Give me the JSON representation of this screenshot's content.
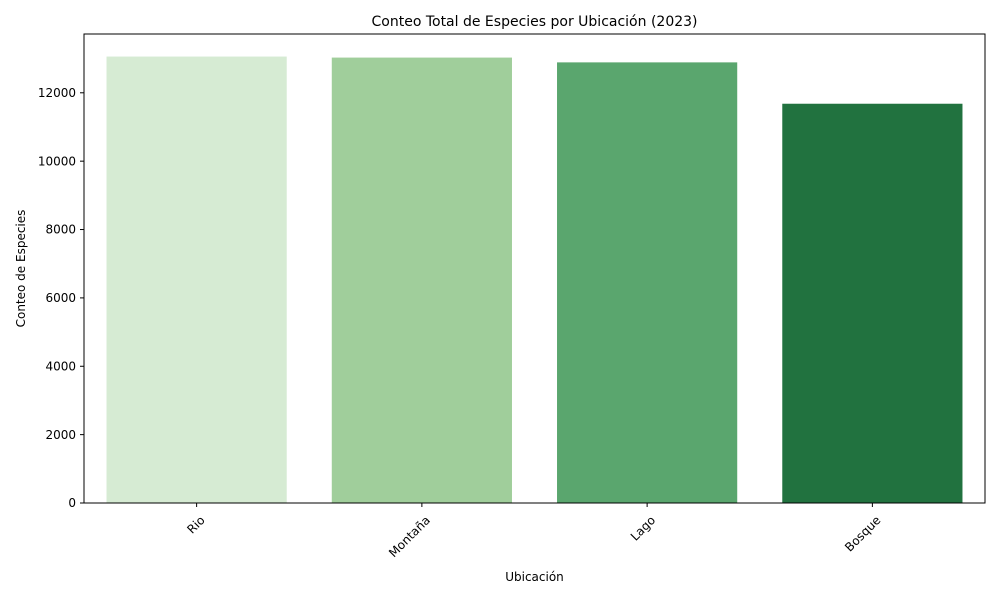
{
  "chart_data": {
    "type": "bar",
    "title": "Conteo Total de Especies por Ubicación (2023)",
    "xlabel": "Ubicación",
    "ylabel": "Conteo de Especies",
    "categories": [
      "Rio",
      "Montaña",
      "Lago",
      "Bosque"
    ],
    "values": [
      13060,
      13030,
      12890,
      11680
    ],
    "colors": [
      "#d6ebd3",
      "#a0ce9b",
      "#5aa66e",
      "#21723f"
    ],
    "ylim": [
      0,
      13720
    ],
    "yticks": [
      0,
      2000,
      4000,
      6000,
      8000,
      10000,
      12000
    ],
    "grid": false,
    "legend": "none"
  }
}
